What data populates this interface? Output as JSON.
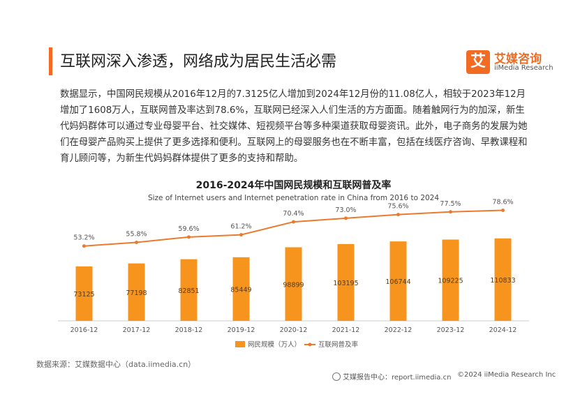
{
  "header": {
    "title": "互联网深入渗透，网络成为居民生活必需",
    "logo_char": "艾",
    "logo_cn": "艾媒咨询",
    "logo_en": "iiMedia Research"
  },
  "intro": "数据显示，中国网民规模从2016年12月的7.3125亿人增加到2024年12月份的11.08亿人，相较于2023年12月增加了1608万人，互联网普及率达到78.6%，互联网已经深入人们生活的方方面面。随着触网行为的加深，新生代妈妈群体可以通过专业母婴平台、社交媒体、短视频平台等多种渠道获取母婴资讯。此外，电子商务的发展为她们在母婴产品购买上提供了更多选择和便利。互联网上的母婴服务也在不断丰富，包括在线医疗咨询、早教课程和育儿顾问等，为新生代妈妈群体提供了更多的支持和帮助。",
  "chart_data": {
    "type": "bar",
    "title": "2016-2024年中国网民规模和互联网普及率",
    "subtitle": "Size of Internet users and Internet penetration rate in China from 2016 to 2024",
    "categories": [
      "2016-12",
      "2017-12",
      "2018-12",
      "2019-12",
      "2020-12",
      "2021-12",
      "2022-12",
      "2023-12",
      "2024-12"
    ],
    "series": [
      {
        "name": "网民规模（万人）",
        "type": "bar",
        "values": [
          73125,
          77198,
          82851,
          85449,
          98899,
          103195,
          106744,
          109225,
          110833
        ],
        "labels": [
          "73125",
          "77198",
          "82851",
          "85449",
          "98899",
          "103195",
          "106744",
          "109225",
          "110833"
        ],
        "color": "#f7941d"
      },
      {
        "name": "互联网普及率",
        "type": "line",
        "values": [
          53.2,
          55.8,
          59.6,
          61.2,
          70.4,
          73.0,
          75.6,
          77.5,
          78.6
        ],
        "labels": [
          "53.2%",
          "55.8%",
          "59.6%",
          "61.2%",
          "70.4%",
          "73.0%",
          "75.6%",
          "77.5%",
          "78.6%"
        ],
        "color": "#ec7a2d"
      }
    ],
    "ylim_bar": [
      0,
      150000
    ],
    "ylim_line": [
      0,
      100
    ],
    "legend": "bottom-center"
  },
  "footer": {
    "source": "数据来源：艾媒数据中心（data.iimedia.cn）",
    "report": "艾媒报告中心：report.iimedia.cn",
    "copyright": "©2024  iiMedia Research  Inc"
  }
}
